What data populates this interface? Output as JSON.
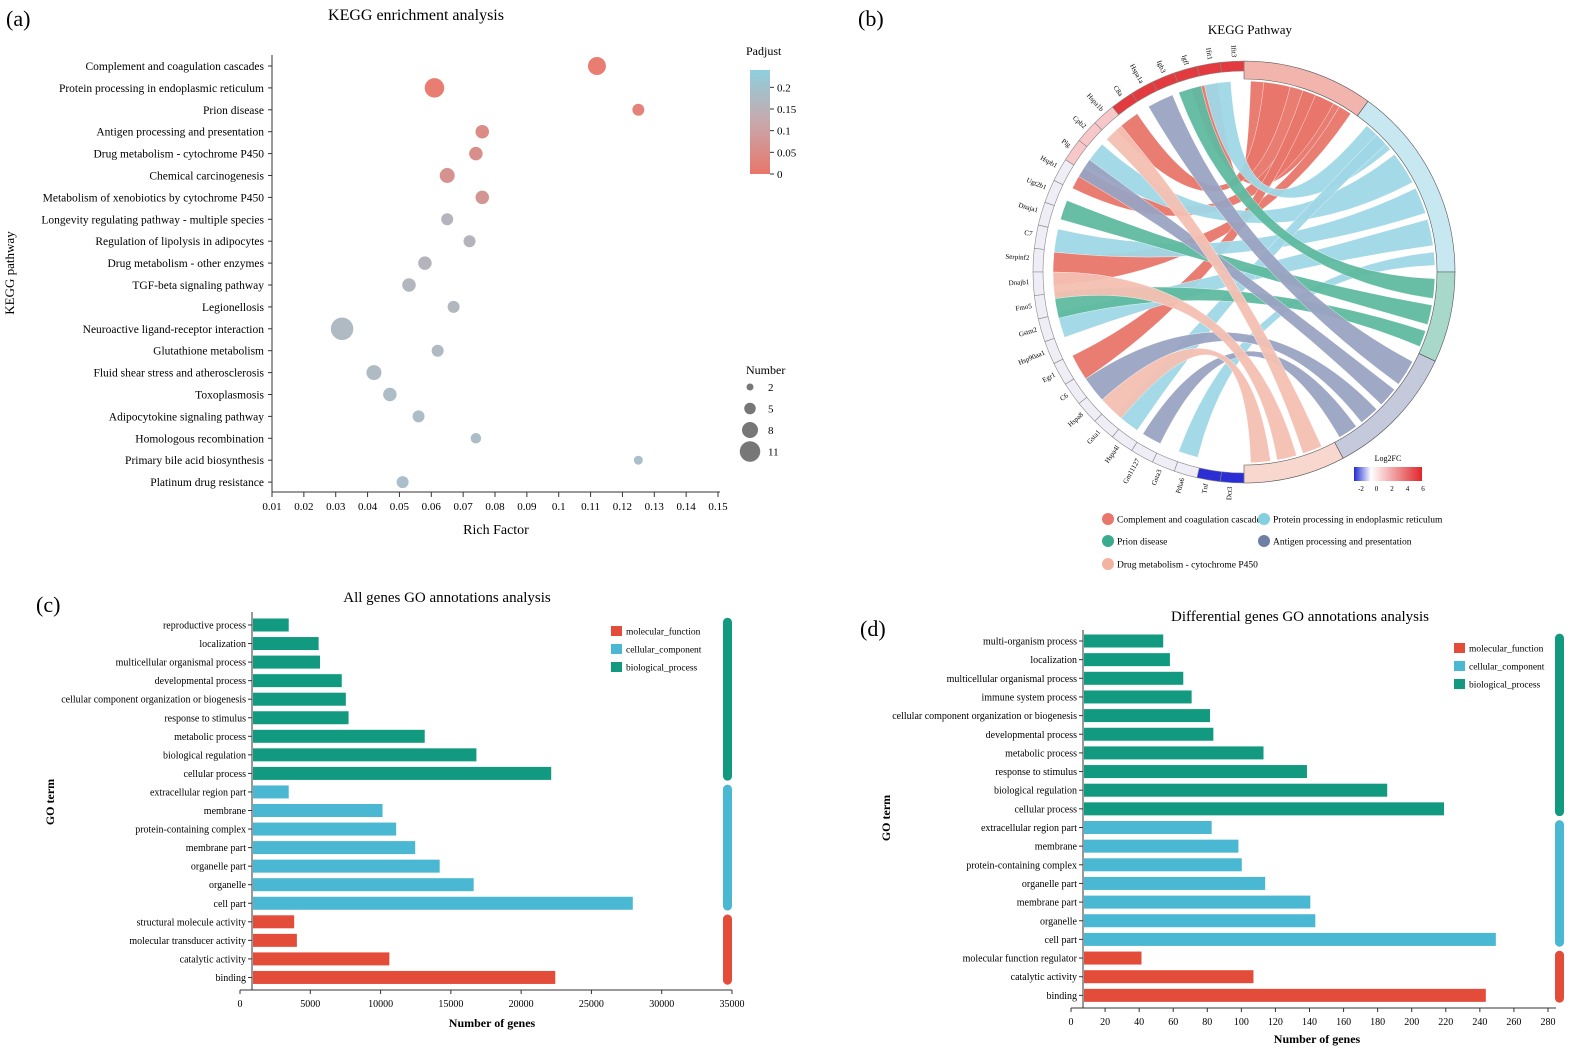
{
  "panels": {
    "a": {
      "label": "(a)",
      "chart_data": {
        "type": "scatter",
        "title": "KEGG enrichment analysis",
        "xlabel": "Rich Factor",
        "ylabel": "KEGG pathway",
        "xlim": [
          0.01,
          0.15
        ],
        "xticks": [
          "0.01",
          "0.02",
          "0.03",
          "0.04",
          "0.05",
          "0.06",
          "0.07",
          "0.08",
          "0.09",
          "0.1",
          "0.11",
          "0.12",
          "0.13",
          "0.14",
          "0.15"
        ],
        "color_legend_title": "Padjust",
        "color_ticks": [
          "0.2",
          "0.15",
          "0.1",
          "0.05",
          "0"
        ],
        "color_low": "#e8766a",
        "color_high": "#8ecfdc",
        "size_legend_title": "Number",
        "size_legend": [
          2,
          5,
          8,
          11
        ],
        "points": [
          {
            "pathway": "Complement and coagulation cascades",
            "rich": 0.112,
            "number": 8,
            "padj": 0.0
          },
          {
            "pathway": "Protein processing in endoplasmic reticulum",
            "rich": 0.061,
            "number": 9,
            "padj": 0.0
          },
          {
            "pathway": "Prion disease",
            "rich": 0.125,
            "number": 4,
            "padj": 0.02
          },
          {
            "pathway": "Antigen processing and presentation",
            "rich": 0.076,
            "number": 5,
            "padj": 0.05
          },
          {
            "pathway": "Drug metabolism - cytochrome P450",
            "rich": 0.074,
            "number": 5,
            "padj": 0.06
          },
          {
            "pathway": "Chemical carcinogenesis",
            "rich": 0.065,
            "number": 6,
            "padj": 0.07
          },
          {
            "pathway": "Metabolism of xenobiotics by cytochrome P450",
            "rich": 0.076,
            "number": 5,
            "padj": 0.08
          },
          {
            "pathway": "Longevity regulating pathway - multiple species",
            "rich": 0.065,
            "number": 4,
            "padj": 0.18
          },
          {
            "pathway": "Regulation of lipolysis in adipocytes",
            "rich": 0.072,
            "number": 4,
            "padj": 0.18
          },
          {
            "pathway": "Drug metabolism - other enzymes",
            "rich": 0.058,
            "number": 5,
            "padj": 0.18
          },
          {
            "pathway": "TGF-beta signaling pathway",
            "rich": 0.053,
            "number": 5,
            "padj": 0.19
          },
          {
            "pathway": "Legionellosis",
            "rich": 0.067,
            "number": 4,
            "padj": 0.19
          },
          {
            "pathway": "Neuroactive ligand-receptor interaction",
            "rich": 0.032,
            "number": 11,
            "padj": 0.2
          },
          {
            "pathway": "Glutathione metabolism",
            "rich": 0.062,
            "number": 4,
            "padj": 0.2
          },
          {
            "pathway": "Fluid shear stress and atherosclerosis",
            "rich": 0.042,
            "number": 6,
            "padj": 0.2
          },
          {
            "pathway": "Toxoplasmosis",
            "rich": 0.047,
            "number": 5,
            "padj": 0.21
          },
          {
            "pathway": "Adipocytokine signaling pathway",
            "rich": 0.056,
            "number": 4,
            "padj": 0.21
          },
          {
            "pathway": "Homologous recombination",
            "rich": 0.074,
            "number": 3,
            "padj": 0.21
          },
          {
            "pathway": "Primary bile acid biosynthesis",
            "rich": 0.125,
            "number": 2,
            "padj": 0.22
          },
          {
            "pathway": "Platinum drug resistance",
            "rich": 0.051,
            "number": 4,
            "padj": 0.22
          }
        ]
      }
    },
    "b": {
      "label": "(b)",
      "chart_data": {
        "type": "chord",
        "title": "KEGG Pathway",
        "genes": [
          "Ifit3",
          "Ifit1",
          "Igfl",
          "Igb3",
          "Hspa1a",
          "C8a",
          "Hspa1b",
          "Cpb2",
          "Plg",
          "Hspb1",
          "Ugt2b1",
          "Dnaja1",
          "C7",
          "Serpinf2",
          "Dnajb1",
          "Fmo5",
          "Gstm2",
          "Hsp90aa1",
          "Egr1",
          "C6",
          "Hspa8",
          "Gsta1",
          "Hspa4l",
          "Gm11127",
          "Gsta3",
          "Pdia6",
          "Tnf",
          "Dct3"
        ],
        "log2fc_scale_title": "Log2FC",
        "log2fc_ticks": [
          "-2",
          "0",
          "2",
          "4",
          "6"
        ],
        "pathways": [
          {
            "name": "Complement and coagulation cascades",
            "color": "#e8766a"
          },
          {
            "name": "Protein processing in endoplasmic reticulum",
            "color": "#84cfe0"
          },
          {
            "name": "Prion disease",
            "color": "#3aab8c"
          },
          {
            "name": "Antigen processing and presentation",
            "color": "#6f7ea5"
          },
          {
            "name": "Drug metabolism - cytochrome P450",
            "color": "#f4b3a0"
          }
        ]
      }
    },
    "c": {
      "label": "(c)",
      "chart_data": {
        "type": "bar",
        "title": "All genes GO annotations analysis",
        "xlabel": "Number of genes",
        "ylabel": "GO term",
        "xlim": [
          0,
          35000
        ],
        "xticks": [
          "0",
          "5000",
          "10000",
          "15000",
          "20000",
          "25000",
          "30000",
          "35000"
        ],
        "legend": [
          {
            "name": "molecular_function",
            "color": "#e44c3a"
          },
          {
            "name": "cellular_component",
            "color": "#4ab8d3"
          },
          {
            "name": "biological_process",
            "color": "#119a80"
          }
        ],
        "bars": [
          {
            "term": "reproductive process",
            "value": 2700,
            "group": "biological_process"
          },
          {
            "term": "localization",
            "value": 4900,
            "group": "biological_process"
          },
          {
            "term": "multicellular organismal process",
            "value": 5000,
            "group": "biological_process"
          },
          {
            "term": "developmental process",
            "value": 6600,
            "group": "biological_process"
          },
          {
            "term": "cellular component organization or biogenesis",
            "value": 6900,
            "group": "biological_process"
          },
          {
            "term": "response to stimulus",
            "value": 7100,
            "group": "biological_process"
          },
          {
            "term": "metabolic process",
            "value": 12700,
            "group": "biological_process"
          },
          {
            "term": "biological regulation",
            "value": 16500,
            "group": "biological_process"
          },
          {
            "term": "cellular process",
            "value": 22000,
            "group": "biological_process"
          },
          {
            "term": "extracellular region part",
            "value": 2700,
            "group": "cellular_component"
          },
          {
            "term": "membrane",
            "value": 9600,
            "group": "cellular_component"
          },
          {
            "term": "protein-containing complex",
            "value": 10600,
            "group": "cellular_component"
          },
          {
            "term": "membrane part",
            "value": 12000,
            "group": "cellular_component"
          },
          {
            "term": "organelle part",
            "value": 13800,
            "group": "cellular_component"
          },
          {
            "term": "organelle",
            "value": 16300,
            "group": "cellular_component"
          },
          {
            "term": "cell part",
            "value": 28000,
            "group": "cellular_component"
          },
          {
            "term": "structural molecule activity",
            "value": 3100,
            "group": "molecular_function"
          },
          {
            "term": "molecular transducer activity",
            "value": 3300,
            "group": "molecular_function"
          },
          {
            "term": "catalytic activity",
            "value": 10100,
            "group": "molecular_function"
          },
          {
            "term": "binding",
            "value": 22300,
            "group": "molecular_function"
          }
        ]
      }
    },
    "d": {
      "label": "(d)",
      "chart_data": {
        "type": "bar",
        "title": "Differential genes GO annotations analysis",
        "xlabel": "Number of genes",
        "ylabel": "GO term",
        "xlim": [
          0,
          280
        ],
        "xticks": [
          "0",
          "20",
          "40",
          "60",
          "80",
          "100",
          "120",
          "140",
          "160",
          "180",
          "200",
          "220",
          "240",
          "260",
          "280"
        ],
        "legend": [
          {
            "name": "molecular_function",
            "color": "#e44c3a"
          },
          {
            "name": "cellular_component",
            "color": "#4ab8d3"
          },
          {
            "name": "biological_process",
            "color": "#119a80"
          }
        ],
        "bars": [
          {
            "term": "multi-organism process",
            "value": 48,
            "group": "biological_process"
          },
          {
            "term": "localization",
            "value": 52,
            "group": "biological_process"
          },
          {
            "term": "multicellular organismal process",
            "value": 60,
            "group": "biological_process"
          },
          {
            "term": "immune system process",
            "value": 65,
            "group": "biological_process"
          },
          {
            "term": "cellular component organization or biogenesis",
            "value": 76,
            "group": "biological_process"
          },
          {
            "term": "developmental process",
            "value": 78,
            "group": "biological_process"
          },
          {
            "term": "metabolic process",
            "value": 108,
            "group": "biological_process"
          },
          {
            "term": "response to stimulus",
            "value": 134,
            "group": "biological_process"
          },
          {
            "term": "biological regulation",
            "value": 182,
            "group": "biological_process"
          },
          {
            "term": "cellular process",
            "value": 216,
            "group": "biological_process"
          },
          {
            "term": "extracellular region part",
            "value": 77,
            "group": "cellular_component"
          },
          {
            "term": "membrane",
            "value": 93,
            "group": "cellular_component"
          },
          {
            "term": "protein-containing complex",
            "value": 95,
            "group": "cellular_component"
          },
          {
            "term": "organelle part",
            "value": 109,
            "group": "cellular_component"
          },
          {
            "term": "membrane part",
            "value": 136,
            "group": "cellular_component"
          },
          {
            "term": "organelle",
            "value": 139,
            "group": "cellular_component"
          },
          {
            "term": "cell part",
            "value": 247,
            "group": "cellular_component"
          },
          {
            "term": "molecular function regulator",
            "value": 35,
            "group": "molecular_function"
          },
          {
            "term": "catalytic activity",
            "value": 102,
            "group": "molecular_function"
          },
          {
            "term": "binding",
            "value": 241,
            "group": "molecular_function"
          }
        ]
      }
    }
  }
}
